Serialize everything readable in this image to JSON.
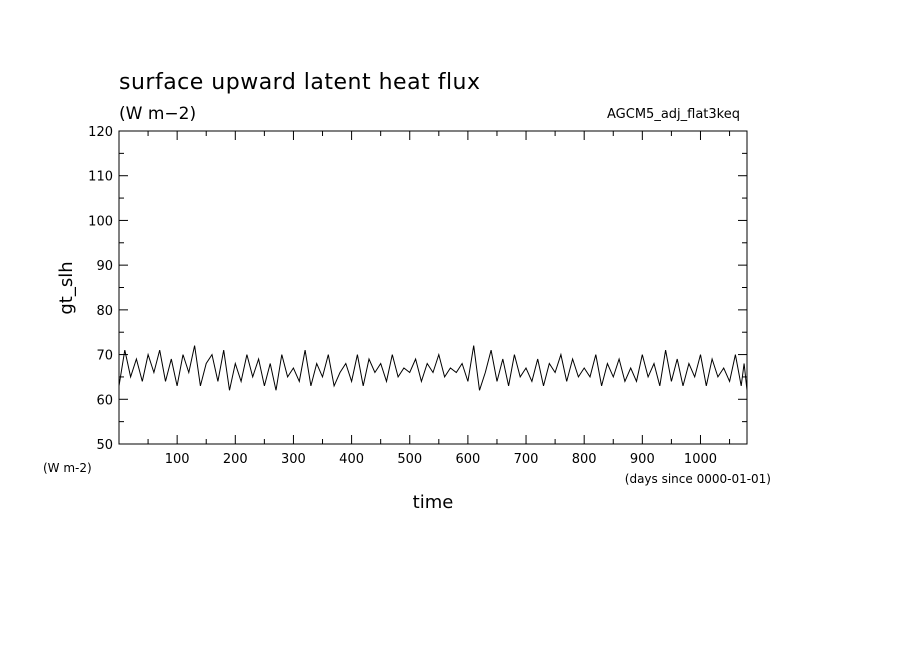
{
  "chart_data": {
    "type": "line",
    "title": "surface upward latent heat flux",
    "subtitle": "(W m−2)",
    "run_label": "AGCM5_adj_flat3keq",
    "ylabel": "gt_slh",
    "y_unit_label": "(W m-2)",
    "xlabel": "time",
    "x_unit_label": "(days since 0000-01-01)",
    "xlim": [
      0,
      1080
    ],
    "ylim": [
      50,
      120
    ],
    "xticks": [
      100,
      200,
      300,
      400,
      500,
      600,
      700,
      800,
      900,
      1000
    ],
    "yticks": [
      50,
      60,
      70,
      80,
      90,
      100,
      110,
      120
    ],
    "grid": false,
    "series": [
      {
        "x": [
          0,
          10,
          20,
          30,
          40,
          50,
          60,
          70,
          80,
          90,
          100,
          110,
          120,
          130,
          140,
          150,
          160,
          170,
          180,
          190,
          200,
          210,
          220,
          230,
          240,
          250,
          260,
          270,
          280,
          290,
          300,
          310,
          320,
          330,
          340,
          350,
          360,
          370,
          380,
          390,
          400,
          410,
          420,
          430,
          440,
          450,
          460,
          470,
          480,
          490,
          500,
          510,
          520,
          530,
          540,
          550,
          560,
          570,
          580,
          590,
          600,
          610,
          620,
          630,
          640,
          650,
          660,
          670,
          680,
          690,
          700,
          710,
          720,
          730,
          740,
          750,
          760,
          770,
          780,
          790,
          800,
          810,
          820,
          830,
          840,
          850,
          860,
          870,
          880,
          890,
          900,
          910,
          920,
          930,
          940,
          950,
          960,
          970,
          980,
          990,
          1000,
          1010,
          1020,
          1030,
          1040,
          1050,
          1060,
          1070,
          1075,
          1080
        ],
        "y": [
          63,
          71,
          65,
          69,
          64,
          70,
          66,
          71,
          64,
          69,
          63,
          70,
          66,
          72,
          63,
          68,
          70,
          64,
          71,
          62,
          68,
          64,
          70,
          65,
          69,
          63,
          68,
          62,
          70,
          65,
          67,
          64,
          71,
          63,
          68,
          65,
          70,
          63,
          66,
          68,
          64,
          70,
          63,
          69,
          66,
          68,
          64,
          70,
          65,
          67,
          66,
          69,
          64,
          68,
          66,
          70,
          65,
          67,
          66,
          68,
          64,
          72,
          62,
          66,
          71,
          64,
          69,
          63,
          70,
          65,
          67,
          64,
          69,
          63,
          68,
          66,
          70,
          64,
          69,
          65,
          67,
          65,
          70,
          63,
          68,
          65,
          69,
          64,
          67,
          64,
          70,
          65,
          68,
          63,
          71,
          64,
          69,
          63,
          68,
          65,
          70,
          63,
          69,
          65,
          67,
          64,
          70,
          63,
          68,
          62
        ]
      }
    ]
  }
}
